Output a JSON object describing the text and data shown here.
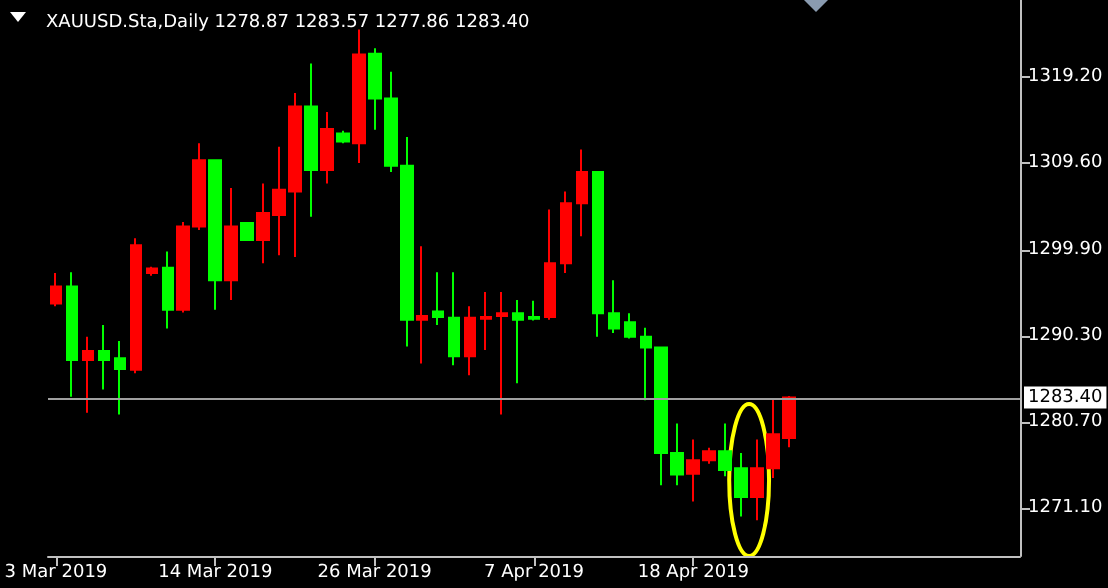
{
  "chart_data": {
    "type": "candlestick",
    "title": "XAUUSD.Sta,Daily 1278.87 1283.57 1277.86 1283.40",
    "categories": [
      "3 Mar 2019",
      null,
      null,
      null,
      null,
      null,
      null,
      null,
      null,
      null,
      "14 Mar 2019",
      null,
      null,
      null,
      null,
      null,
      null,
      null,
      null,
      null,
      "26 Mar 2019",
      null,
      null,
      null,
      null,
      null,
      null,
      null,
      null,
      null,
      "7 Apr 2019",
      null,
      null,
      null,
      null,
      null,
      null,
      null,
      null,
      null,
      "18 Apr 2019",
      null,
      null,
      null,
      null,
      null,
      null,
      null,
      null,
      null,
      null,
      null,
      null,
      null,
      null,
      null,
      null,
      null,
      null,
      null,
      null
    ],
    "ohlc": [
      [
        1293.9,
        1297.3,
        1293.6,
        1295.8
      ],
      [
        1295.8,
        1297.4,
        1283.5,
        1287.6
      ],
      [
        1287.6,
        1290.2,
        1281.7,
        1288.6
      ],
      [
        1288.6,
        1291.5,
        1284.3,
        1287.6
      ],
      [
        1287.8,
        1289.7,
        1281.5,
        1286.6
      ],
      [
        1286.5,
        1301.2,
        1286.1,
        1300.4
      ],
      [
        1297.3,
        1298.0,
        1297.0,
        1297.8
      ],
      [
        1297.9,
        1299.7,
        1291.1,
        1293.2
      ],
      [
        1293.2,
        1303.0,
        1292.9,
        1302.5
      ],
      [
        1302.5,
        1311.8,
        1302.1,
        1309.9
      ],
      [
        1309.9,
        1309.9,
        1293.2,
        1296.5
      ],
      [
        1296.5,
        1306.8,
        1294.3,
        1302.5
      ],
      [
        1302.9,
        1302.9,
        1301.0,
        1301.0
      ],
      [
        1301.0,
        1307.3,
        1298.4,
        1304.0
      ],
      [
        1303.8,
        1311.4,
        1299.3,
        1306.6
      ],
      [
        1306.4,
        1317.4,
        1299.1,
        1315.9
      ],
      [
        1315.9,
        1320.7,
        1303.6,
        1308.8
      ],
      [
        1308.8,
        1315.3,
        1307.3,
        1313.4
      ],
      [
        1312.9,
        1313.2,
        1311.8,
        1312.0
      ],
      [
        1311.8,
        1324.5,
        1309.6,
        1321.7
      ],
      [
        1321.8,
        1322.4,
        1313.3,
        1316.8
      ],
      [
        1316.8,
        1319.8,
        1308.6,
        1309.3
      ],
      [
        1309.3,
        1312.5,
        1289.1,
        1292.1
      ],
      [
        1292.1,
        1300.3,
        1287.2,
        1292.5
      ],
      [
        1293.0,
        1297.4,
        1291.5,
        1292.4
      ],
      [
        1292.3,
        1297.4,
        1287.0,
        1288.0
      ],
      [
        1288.0,
        1293.6,
        1285.9,
        1292.3
      ],
      [
        1292.2,
        1295.2,
        1288.7,
        1292.4
      ],
      [
        1292.5,
        1295.2,
        1281.5,
        1292.8
      ],
      [
        1292.8,
        1294.3,
        1285.0,
        1292.1
      ],
      [
        1292.4,
        1294.2,
        1292.0,
        1292.2
      ],
      [
        1292.4,
        1304.4,
        1292.1,
        1298.4
      ],
      [
        1298.4,
        1306.4,
        1297.3,
        1305.1
      ],
      [
        1305.1,
        1311.1,
        1301.4,
        1308.6
      ],
      [
        1308.6,
        1308.6,
        1290.2,
        1292.8
      ],
      [
        1292.8,
        1296.5,
        1290.6,
        1291.1
      ],
      [
        1291.8,
        1292.8,
        1290.0,
        1290.2
      ],
      [
        1290.2,
        1291.2,
        1283.1,
        1289.0
      ],
      [
        1289.0,
        1289.0,
        1273.6,
        1277.2
      ],
      [
        1277.2,
        1280.5,
        1273.6,
        1274.8
      ],
      [
        1274.9,
        1278.7,
        1271.8,
        1276.4
      ],
      [
        1276.4,
        1277.8,
        1276.0,
        1277.4
      ],
      [
        1277.4,
        1280.5,
        1274.6,
        1275.3
      ],
      [
        1275.5,
        1277.2,
        1270.1,
        1272.3
      ],
      [
        1272.3,
        1278.7,
        1269.7,
        1275.5
      ],
      [
        1275.5,
        1283.3,
        1274.4,
        1279.3
      ],
      [
        1278.87,
        1283.57,
        1277.86,
        1283.4
      ],
      null,
      null,
      null,
      null,
      null,
      null,
      null,
      null,
      null,
      null,
      null,
      null,
      null,
      null
    ],
    "colors": [
      "#ff0000",
      "#00ff00",
      "#ff0000",
      "#00ff00",
      "#00ff00",
      "#ff0000",
      "#ff0000",
      "#00ff00",
      "#ff0000",
      "#ff0000",
      "#00ff00",
      "#ff0000",
      "#00ff00",
      "#ff0000",
      "#ff0000",
      "#ff0000",
      "#00ff00",
      "#ff0000",
      "#00ff00",
      "#ff0000",
      "#00ff00",
      "#00ff00",
      "#00ff00",
      "#ff0000",
      "#00ff00",
      "#00ff00",
      "#ff0000",
      "#ff0000",
      "#ff0000",
      "#00ff00",
      "#00ff00",
      "#ff0000",
      "#ff0000",
      "#ff0000",
      "#00ff00",
      "#00ff00",
      "#00ff00",
      "#00ff00",
      "#00ff00",
      "#00ff00",
      "#ff0000",
      "#ff0000",
      "#00ff00",
      "#00ff00",
      "#ff0000",
      "#ff0000",
      "#ff0000",
      null,
      null,
      null,
      null,
      null,
      null,
      null,
      null,
      null,
      null,
      null,
      null,
      null,
      null
    ],
    "ylim": [
      1265.7,
      1327.8
    ],
    "yticks": [
      {
        "value": 1271.1,
        "label": "1271.10"
      },
      {
        "value": 1280.7,
        "label": "1280.70"
      },
      {
        "value": 1290.3,
        "label": "1290.30"
      },
      {
        "value": 1299.9,
        "label": "1299.90"
      },
      {
        "value": 1309.6,
        "label": "1309.60"
      },
      {
        "value": 1319.2,
        "label": "1319.20"
      }
    ],
    "ref_lines": [
      {
        "axis": "y",
        "value": 1283.4,
        "label": "1283.40",
        "color": "#a0a0a0"
      }
    ],
    "grid": false
  }
}
